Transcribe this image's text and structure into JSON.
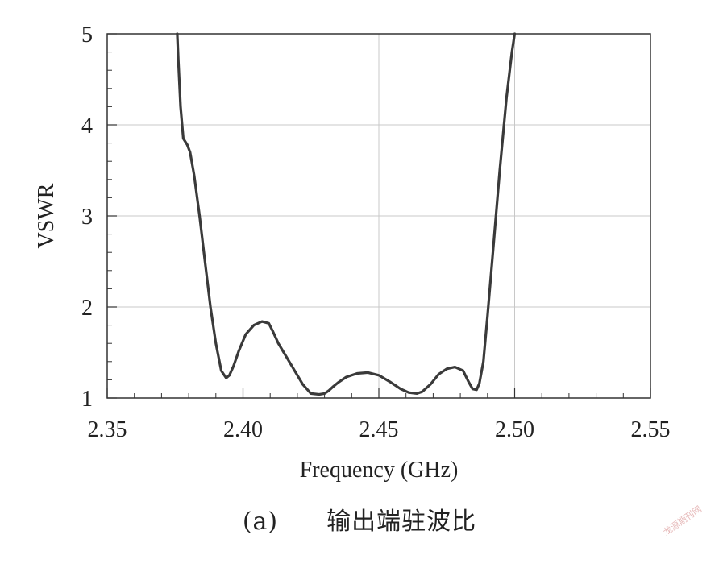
{
  "chart_data": {
    "type": "line",
    "xlabel": "Frequency (GHz)",
    "ylabel": "VSWR",
    "xlim": [
      2.35,
      2.55
    ],
    "ylim": [
      1,
      5
    ],
    "xticks": [
      "2.35",
      "2.40",
      "2.45",
      "2.50",
      "2.55"
    ],
    "yticks": [
      "1",
      "2",
      "3",
      "4",
      "5"
    ],
    "grid": true,
    "line_color": "#3a3a3a",
    "series": [
      {
        "x": [
          2.3758,
          2.3762,
          2.377,
          2.378,
          2.3795,
          2.3805,
          2.382,
          2.384,
          2.386,
          2.388,
          2.39,
          2.392,
          2.3938,
          2.395,
          2.3965,
          2.3985,
          2.401,
          2.404,
          2.407,
          2.4095,
          2.411,
          2.413,
          2.416,
          2.419,
          2.422,
          2.425,
          2.428,
          2.43,
          2.4315,
          2.433,
          2.435,
          2.438,
          2.442,
          2.446,
          2.45,
          2.454,
          2.458,
          2.461,
          2.464,
          2.466,
          2.469,
          2.472,
          2.475,
          2.478,
          2.481,
          2.483,
          2.4845,
          2.486,
          2.487,
          2.4885,
          2.49,
          2.492,
          2.4945,
          2.497,
          2.499,
          2.5
        ],
        "y": [
          5.0,
          4.7,
          4.2,
          3.85,
          3.78,
          3.7,
          3.45,
          3.0,
          2.5,
          2.0,
          1.6,
          1.3,
          1.22,
          1.25,
          1.35,
          1.52,
          1.7,
          1.8,
          1.84,
          1.82,
          1.73,
          1.6,
          1.45,
          1.3,
          1.15,
          1.05,
          1.04,
          1.05,
          1.08,
          1.12,
          1.17,
          1.23,
          1.27,
          1.28,
          1.25,
          1.18,
          1.1,
          1.06,
          1.05,
          1.07,
          1.15,
          1.26,
          1.32,
          1.34,
          1.3,
          1.18,
          1.1,
          1.09,
          1.16,
          1.4,
          1.9,
          2.6,
          3.5,
          4.3,
          4.8,
          5.0
        ]
      }
    ]
  },
  "caption": {
    "label": "(a)",
    "text": "输出端驻波比"
  },
  "watermark": "龙源期刊网"
}
